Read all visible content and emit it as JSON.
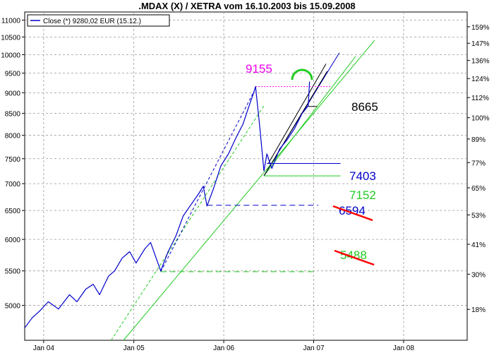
{
  "chart_data": {
    "type": "line",
    "title": ".MDAX (X) / XETRA vom 16.10.2003 bis 15.09.2008",
    "legend": {
      "label": "Close (*) 9280,02 EUR (15.12.)",
      "placement": "top-left"
    },
    "x_range": [
      "2003-10-16",
      "2008-09-15"
    ],
    "x_ticks": [
      {
        "date": "2004-01-01",
        "label": "Jan 04"
      },
      {
        "date": "2005-01-01",
        "label": "Jan 05"
      },
      {
        "date": "2006-01-01",
        "label": "Jan 06"
      },
      {
        "date": "2007-01-01",
        "label": "Jan 07"
      },
      {
        "date": "2008-01-01",
        "label": "Jan 08"
      }
    ],
    "y_scale": "log",
    "ylim": [
      4540,
      11250
    ],
    "y_ticks_left": [
      5000,
      5500,
      6000,
      6500,
      7000,
      7500,
      8000,
      8500,
      9000,
      9500,
      10000,
      10500,
      11000
    ],
    "y_ticks_right": [
      {
        "value": 4945,
        "label": "18%"
      },
      {
        "value": 5450,
        "label": "30%"
      },
      {
        "value": 5920,
        "label": "41%"
      },
      {
        "value": 6420,
        "label": "53%"
      },
      {
        "value": 6920,
        "label": "65%"
      },
      {
        "value": 7420,
        "label": "77%"
      },
      {
        "value": 7920,
        "label": "89%"
      },
      {
        "value": 8400,
        "label": "100%"
      },
      {
        "value": 8880,
        "label": "112%"
      },
      {
        "value": 9360,
        "label": "124%"
      },
      {
        "value": 9840,
        "label": "136%"
      },
      {
        "value": 10320,
        "label": "147%"
      },
      {
        "value": 10800,
        "label": "159%"
      }
    ],
    "grid": true,
    "series": [
      {
        "name": "Close (*) 9280,02 EUR (15.12.)",
        "color": "#0000cc",
        "points": [
          [
            "2003-10-16",
            4700
          ],
          [
            "2003-11-15",
            4830
          ],
          [
            "2003-12-15",
            4920
          ],
          [
            "2004-01-20",
            5050
          ],
          [
            "2004-03-01",
            4950
          ],
          [
            "2004-04-15",
            5150
          ],
          [
            "2004-05-15",
            5050
          ],
          [
            "2004-06-20",
            5230
          ],
          [
            "2004-07-20",
            5300
          ],
          [
            "2004-08-15",
            5150
          ],
          [
            "2004-09-20",
            5420
          ],
          [
            "2004-10-15",
            5500
          ],
          [
            "2004-11-15",
            5700
          ],
          [
            "2004-12-15",
            5800
          ],
          [
            "2005-01-10",
            5620
          ],
          [
            "2005-02-15",
            5850
          ],
          [
            "2005-03-10",
            5950
          ],
          [
            "2005-04-20",
            5500
          ],
          [
            "2005-05-20",
            5800
          ],
          [
            "2005-06-20",
            6050
          ],
          [
            "2005-07-20",
            6400
          ],
          [
            "2005-08-20",
            6600
          ],
          [
            "2005-09-20",
            6800
          ],
          [
            "2005-10-10",
            6950
          ],
          [
            "2005-10-25",
            6580
          ],
          [
            "2005-11-20",
            6900
          ],
          [
            "2005-12-20",
            7350
          ],
          [
            "2006-01-20",
            7600
          ],
          [
            "2006-02-20",
            7950
          ],
          [
            "2006-03-20",
            8250
          ],
          [
            "2006-04-15",
            8700
          ],
          [
            "2006-05-05",
            9050
          ],
          [
            "2006-05-10",
            9155
          ],
          [
            "2006-05-25",
            8300
          ],
          [
            "2006-06-13",
            7250
          ],
          [
            "2006-06-25",
            7600
          ],
          [
            "2006-07-15",
            7300
          ],
          [
            "2006-08-15",
            7700
          ],
          [
            "2006-09-15",
            7900
          ],
          [
            "2006-10-15",
            8150
          ],
          [
            "2006-11-15",
            8500
          ],
          [
            "2006-12-10",
            8680
          ],
          [
            "2006-12-15",
            9280
          ]
        ]
      }
    ],
    "annotations": [
      {
        "label": "9155",
        "value": 9155,
        "color": "#ee00ee"
      },
      {
        "label": "8665",
        "value": 8665,
        "color": "#000000"
      },
      {
        "label": "7403",
        "value": 7403,
        "color": "#0000cc"
      },
      {
        "label": "7152",
        "value": 7152,
        "color": "#22cc22"
      },
      {
        "label": "6594",
        "value": 6594,
        "color": "#0000cc",
        "struck": true
      },
      {
        "label": "5488",
        "value": 5488,
        "color": "#22cc22",
        "struck": true
      }
    ]
  }
}
